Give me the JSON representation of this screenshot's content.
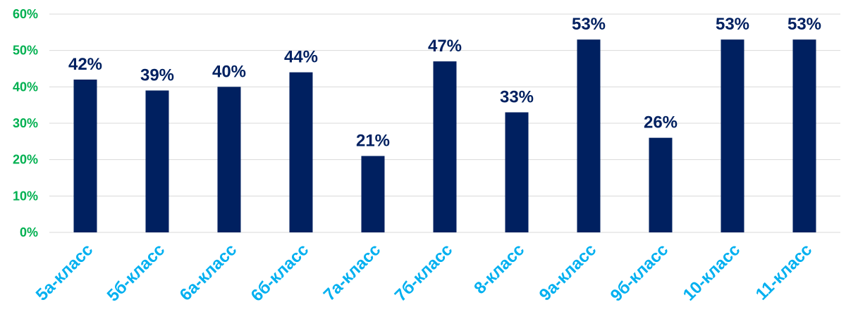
{
  "chart_data": {
    "type": "bar",
    "categories": [
      "5а-класс",
      "5б-класс",
      "6а-класс",
      "6б-класс",
      "7а-класс",
      "7б-класс",
      "8-класс",
      "9а-класс",
      "9б-класс",
      "10-класс",
      "11-класс"
    ],
    "values": [
      42,
      39,
      40,
      44,
      21,
      47,
      33,
      53,
      26,
      53,
      53
    ],
    "data_labels": [
      "42%",
      "39%",
      "40%",
      "44%",
      "21%",
      "47%",
      "33%",
      "53%",
      "26%",
      "53%",
      "53%"
    ],
    "yticks": [
      "0%",
      "10%",
      "20%",
      "30%",
      "40%",
      "50%",
      "60%"
    ],
    "ylim": [
      0,
      60
    ],
    "title": "",
    "xlabel": "",
    "ylabel": "",
    "grid": true,
    "legend": "none",
    "colors": {
      "bar": "#002060",
      "data_label": "#002060",
      "y_tick": "#00b050",
      "x_tick": "#00b0f0",
      "grid": "#d9d9d9"
    }
  }
}
